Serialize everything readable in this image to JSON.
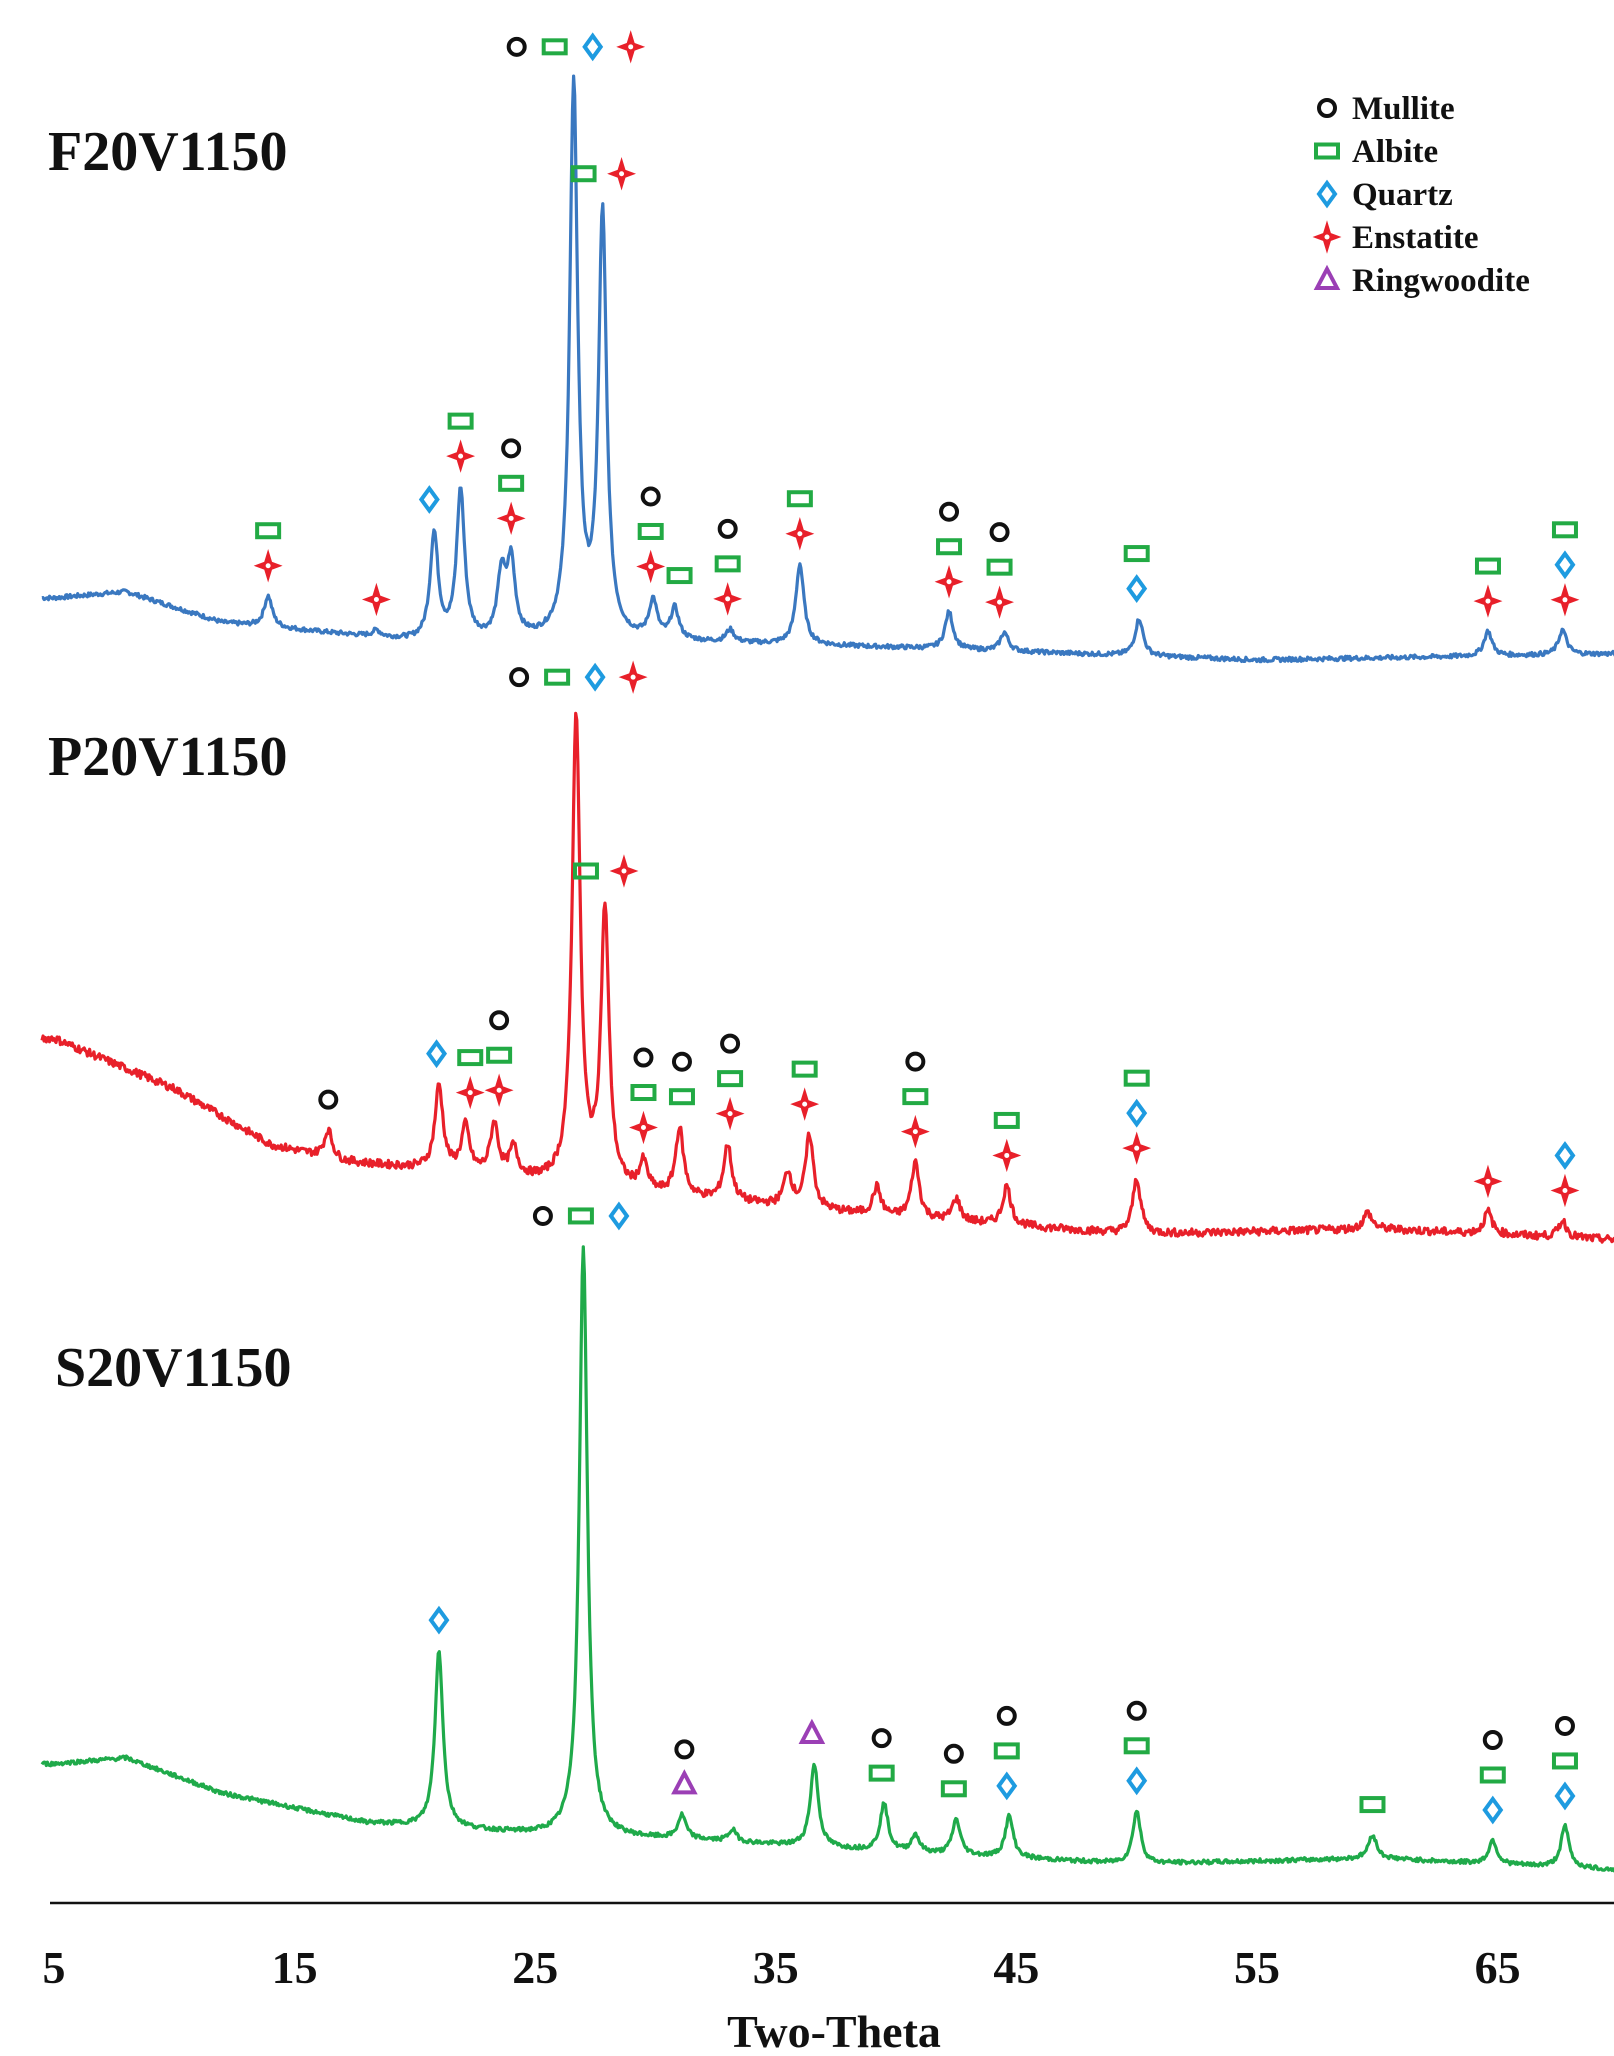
{
  "chart_data": {
    "type": "line",
    "title": "",
    "xlabel": "Two-Theta",
    "ylabel": "",
    "xlim": [
      5,
      70
    ],
    "x_ticks": [
      5,
      15,
      25,
      35,
      45,
      55,
      65
    ],
    "grid": false,
    "legend_position": "top-right",
    "phases": [
      {
        "name": "Mullite",
        "marker": "circle",
        "color": "#111111"
      },
      {
        "name": "Albite",
        "marker": "square",
        "color": "#22aa44"
      },
      {
        "name": "Quartz",
        "marker": "diamond",
        "color": "#1e9be0"
      },
      {
        "name": "Enstatite",
        "marker": "star",
        "color": "#e8202a"
      },
      {
        "name": "Ringwoodite",
        "marker": "triangle",
        "color": "#9b3fb5"
      }
    ],
    "series": [
      {
        "name": "F20V1150",
        "color": "#3a78c0",
        "baseline": [
          [
            5,
            0.1
          ],
          [
            8,
            0.11
          ],
          [
            12,
            0.06
          ],
          [
            20,
            0.03
          ],
          [
            30,
            0.03
          ],
          [
            40,
            0.02
          ],
          [
            55,
            0.0
          ],
          [
            70,
            0.01
          ]
        ],
        "peaks": [
          [
            13.9,
            0.05
          ],
          [
            18.4,
            0.01
          ],
          [
            20.8,
            0.17
          ],
          [
            21.9,
            0.24
          ],
          [
            23.6,
            0.1
          ],
          [
            24.0,
            0.12
          ],
          [
            26.6,
            0.89
          ],
          [
            27.8,
            0.68
          ],
          [
            29.9,
            0.06
          ],
          [
            30.8,
            0.05
          ],
          [
            33.1,
            0.02
          ],
          [
            36.0,
            0.13
          ],
          [
            42.2,
            0.06
          ],
          [
            44.5,
            0.03
          ],
          [
            50.1,
            0.06
          ],
          [
            64.6,
            0.04
          ],
          [
            67.7,
            0.04
          ]
        ],
        "annotations": [
          {
            "x": 26.6,
            "phases": [
              "Mullite",
              "Albite",
              "Quartz",
              "Enstatite"
            ]
          },
          {
            "x": 27.8,
            "phases": [
              "Albite",
              "Enstatite"
            ]
          },
          {
            "x": 21.9,
            "phases": [
              "Albite",
              "Enstatite"
            ]
          },
          {
            "x": 24.0,
            "phases": [
              "Mullite",
              "Albite",
              "Enstatite"
            ]
          },
          {
            "x": 20.6,
            "phases": [
              "Quartz"
            ]
          },
          {
            "x": 13.9,
            "phases": [
              "Albite",
              "Enstatite"
            ]
          },
          {
            "x": 18.4,
            "phases": [
              "Enstatite"
            ]
          },
          {
            "x": 29.8,
            "phases": [
              "Mullite",
              "Albite",
              "Enstatite"
            ]
          },
          {
            "x": 31.0,
            "phases": [
              "Albite"
            ]
          },
          {
            "x": 33.0,
            "phases": [
              "Mullite",
              "Albite",
              "Enstatite"
            ]
          },
          {
            "x": 36.0,
            "phases": [
              "Albite",
              "Enstatite"
            ]
          },
          {
            "x": 42.2,
            "phases": [
              "Mullite",
              "Albite",
              "Enstatite"
            ]
          },
          {
            "x": 44.3,
            "phases": [
              "Mullite",
              "Albite",
              "Enstatite"
            ]
          },
          {
            "x": 50.0,
            "phases": [
              "Albite",
              "Quartz"
            ]
          },
          {
            "x": 64.6,
            "phases": [
              "Albite",
              "Enstatite"
            ]
          },
          {
            "x": 67.8,
            "phases": [
              "Albite",
              "Quartz",
              "Enstatite"
            ]
          }
        ]
      },
      {
        "name": "P20V1150",
        "color": "#e8202a",
        "baseline": [
          [
            5,
            0.36
          ],
          [
            10,
            0.27
          ],
          [
            14,
            0.17
          ],
          [
            17,
            0.14
          ],
          [
            22,
            0.12
          ],
          [
            30,
            0.08
          ],
          [
            40,
            0.04
          ],
          [
            50,
            0.01
          ],
          [
            60,
            0.02
          ],
          [
            70,
            0.0
          ]
        ],
        "peaks": [
          [
            16.4,
            0.05
          ],
          [
            21.0,
            0.15
          ],
          [
            22.1,
            0.08
          ],
          [
            23.3,
            0.09
          ],
          [
            24.1,
            0.05
          ],
          [
            26.7,
            0.84
          ],
          [
            27.9,
            0.49
          ],
          [
            29.5,
            0.05
          ],
          [
            31.0,
            0.12
          ],
          [
            33.0,
            0.1
          ],
          [
            35.5,
            0.06
          ],
          [
            36.4,
            0.13
          ],
          [
            39.2,
            0.05
          ],
          [
            40.8,
            0.1
          ],
          [
            42.5,
            0.04
          ],
          [
            44.6,
            0.07
          ],
          [
            50.0,
            0.1
          ],
          [
            59.6,
            0.03
          ],
          [
            64.6,
            0.04
          ],
          [
            67.7,
            0.03
          ]
        ],
        "annotations": [
          {
            "x": 26.7,
            "phases": [
              "Mullite",
              "Albite",
              "Quartz",
              "Enstatite"
            ]
          },
          {
            "x": 27.9,
            "phases": [
              "Albite",
              "Enstatite"
            ]
          },
          {
            "x": 16.4,
            "phases": [
              "Mullite"
            ]
          },
          {
            "x": 20.9,
            "phases": [
              "Quartz"
            ]
          },
          {
            "x": 22.3,
            "phases": [
              "Albite",
              "Enstatite"
            ]
          },
          {
            "x": 23.5,
            "phases": [
              "Mullite",
              "Albite",
              "Enstatite"
            ]
          },
          {
            "x": 29.5,
            "phases": [
              "Mullite",
              "Albite",
              "Enstatite"
            ]
          },
          {
            "x": 31.1,
            "phases": [
              "Mullite",
              "Albite"
            ]
          },
          {
            "x": 33.1,
            "phases": [
              "Mullite",
              "Albite",
              "Enstatite"
            ]
          },
          {
            "x": 36.2,
            "phases": [
              "Albite",
              "Enstatite"
            ]
          },
          {
            "x": 40.8,
            "phases": [
              "Mullite",
              "Albite",
              "Enstatite"
            ]
          },
          {
            "x": 44.6,
            "phases": [
              "Albite",
              "Enstatite"
            ]
          },
          {
            "x": 50.0,
            "phases": [
              "Albite",
              "Quartz",
              "Enstatite"
            ]
          },
          {
            "x": 64.6,
            "phases": [
              "Enstatite"
            ]
          },
          {
            "x": 67.8,
            "phases": [
              "Quartz",
              "Enstatite"
            ]
          }
        ]
      },
      {
        "name": "S20V1150",
        "color": "#1faa4a",
        "baseline": [
          [
            5,
            0.18
          ],
          [
            8,
            0.19
          ],
          [
            12,
            0.13
          ],
          [
            18,
            0.08
          ],
          [
            25,
            0.06
          ],
          [
            32,
            0.05
          ],
          [
            40,
            0.03
          ],
          [
            50,
            0.01
          ],
          [
            60,
            0.02
          ],
          [
            70,
            0.0
          ]
        ],
        "peaks": [
          [
            21.0,
            0.3
          ],
          [
            27.0,
            1.0
          ],
          [
            31.1,
            0.04
          ],
          [
            33.2,
            0.02
          ],
          [
            36.6,
            0.14
          ],
          [
            39.5,
            0.08
          ],
          [
            40.8,
            0.03
          ],
          [
            42.5,
            0.06
          ],
          [
            44.7,
            0.07
          ],
          [
            50.0,
            0.09
          ],
          [
            59.8,
            0.04
          ],
          [
            64.8,
            0.04
          ],
          [
            67.8,
            0.07
          ]
        ],
        "annotations": [
          {
            "x": 26.9,
            "phases": [
              "Mullite",
              "Albite",
              "Quartz"
            ]
          },
          {
            "x": 21.0,
            "phases": [
              "Quartz"
            ]
          },
          {
            "x": 31.2,
            "phases": [
              "Mullite",
              "Ringwoodite"
            ]
          },
          {
            "x": 36.5,
            "phases": [
              "Ringwoodite"
            ]
          },
          {
            "x": 39.4,
            "phases": [
              "Mullite",
              "Albite"
            ]
          },
          {
            "x": 42.4,
            "phases": [
              "Mullite",
              "Albite"
            ]
          },
          {
            "x": 44.6,
            "phases": [
              "Mullite",
              "Albite",
              "Quartz"
            ]
          },
          {
            "x": 50.0,
            "phases": [
              "Mullite",
              "Albite",
              "Quartz"
            ]
          },
          {
            "x": 59.8,
            "phases": [
              "Albite"
            ]
          },
          {
            "x": 64.8,
            "phases": [
              "Mullite",
              "Albite",
              "Quartz"
            ]
          },
          {
            "x": 67.8,
            "phases": [
              "Mullite",
              "Albite",
              "Quartz"
            ]
          }
        ]
      }
    ]
  }
}
